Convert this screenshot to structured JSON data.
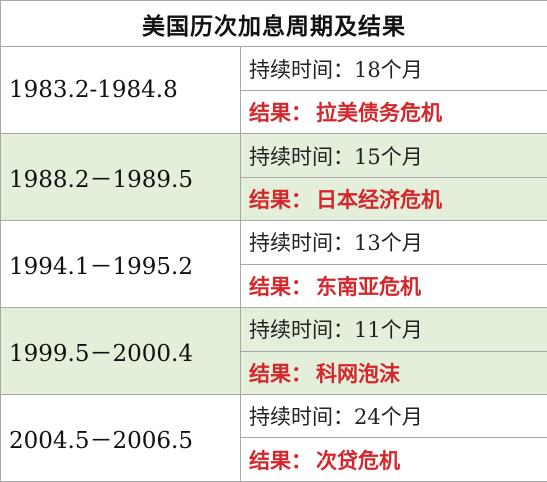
{
  "title": "美国历次加息周期及结果",
  "result_prefix": "结果：",
  "rows": [
    {
      "period": "1983.2-1984.8",
      "duration": "持续时间：18个月",
      "result": "拉美债务危机"
    },
    {
      "period": "1988.2－1989.5",
      "duration": "持续时间：15个月",
      "result": "日本经济危机"
    },
    {
      "period": "1994.1－1995.2",
      "duration": "持续时间：13个月",
      "result": "东南亚危机"
    },
    {
      "period": "1999.5－2000.4",
      "duration": "持续时间：11个月",
      "result": "科网泡沫"
    },
    {
      "period": "2004.5－2006.5",
      "duration": "持续时间：24个月",
      "result": "次贷危机"
    }
  ],
  "colors": {
    "result_text": "#d4262b",
    "shade_band": "#e3efda",
    "border": "#a8a8a8"
  }
}
